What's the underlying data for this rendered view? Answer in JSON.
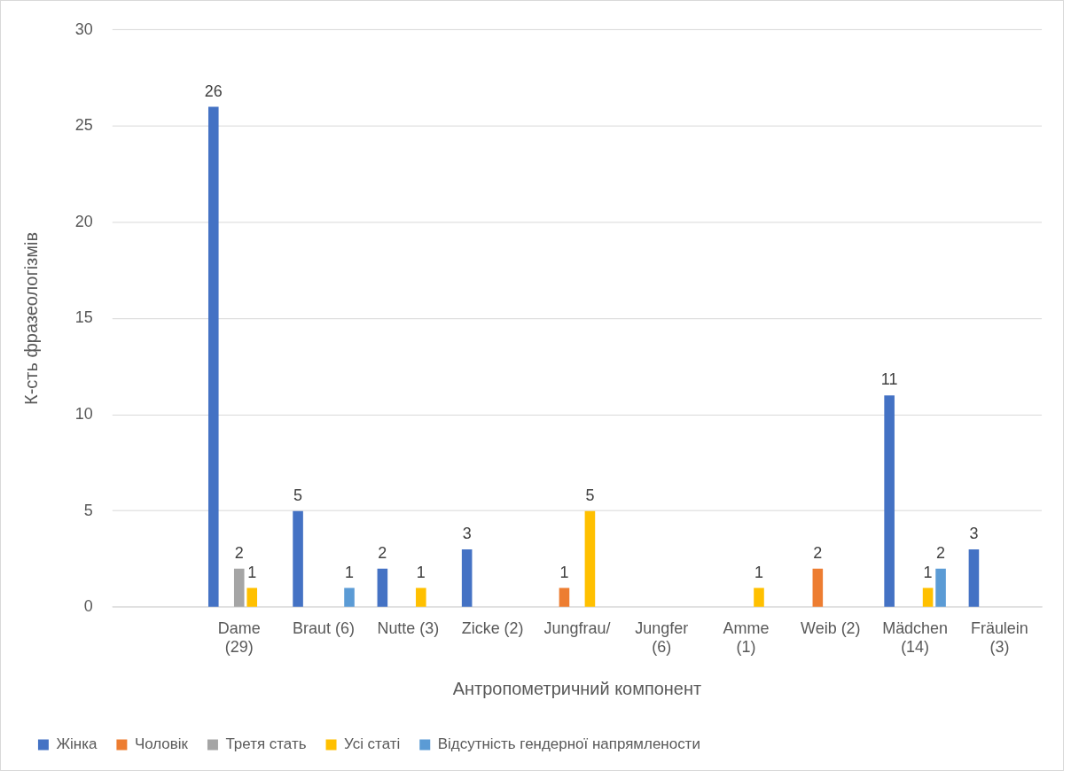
{
  "chart_data": {
    "type": "bar",
    "xlabel": "Антропометричний компонент",
    "ylabel": "К-сть фразеологізмів",
    "categories": [
      null,
      "Dame\n(29)",
      "Braut (6)",
      "Nutte (3)",
      "Zicke (2)",
      "Jungfrau/",
      "Jungfer\n(6)",
      "Amme\n(1)",
      "Weib (2)",
      "Mädchen\n(14)",
      "Fräulein\n(3)"
    ],
    "series": [
      {
        "name": "Жінка",
        "color": "#4472c4",
        "values": [
          null,
          26,
          5,
          2,
          3,
          null,
          null,
          null,
          null,
          11,
          3
        ]
      },
      {
        "name": "Чоловік",
        "color": "#ed7d31",
        "values": [
          null,
          null,
          null,
          null,
          null,
          1,
          null,
          null,
          2,
          null,
          null
        ]
      },
      {
        "name": "Третя стать",
        "color": "#a5a5a5",
        "values": [
          null,
          2,
          null,
          null,
          null,
          null,
          null,
          null,
          null,
          null,
          null
        ]
      },
      {
        "name": "Усі статі",
        "color": "#ffc000",
        "values": [
          null,
          1,
          null,
          1,
          null,
          5,
          null,
          1,
          null,
          1,
          null
        ]
      },
      {
        "name": "Відсутність гендерної напрямлености",
        "color": "#5b9bd5",
        "values": [
          null,
          null,
          1,
          null,
          null,
          null,
          null,
          null,
          null,
          2,
          null
        ]
      }
    ],
    "ylim": [
      0,
      30
    ],
    "yticks": [
      0,
      5,
      10,
      15,
      20,
      25,
      30
    ],
    "grid": "y",
    "legend": "bottom",
    "data_labels": true
  }
}
